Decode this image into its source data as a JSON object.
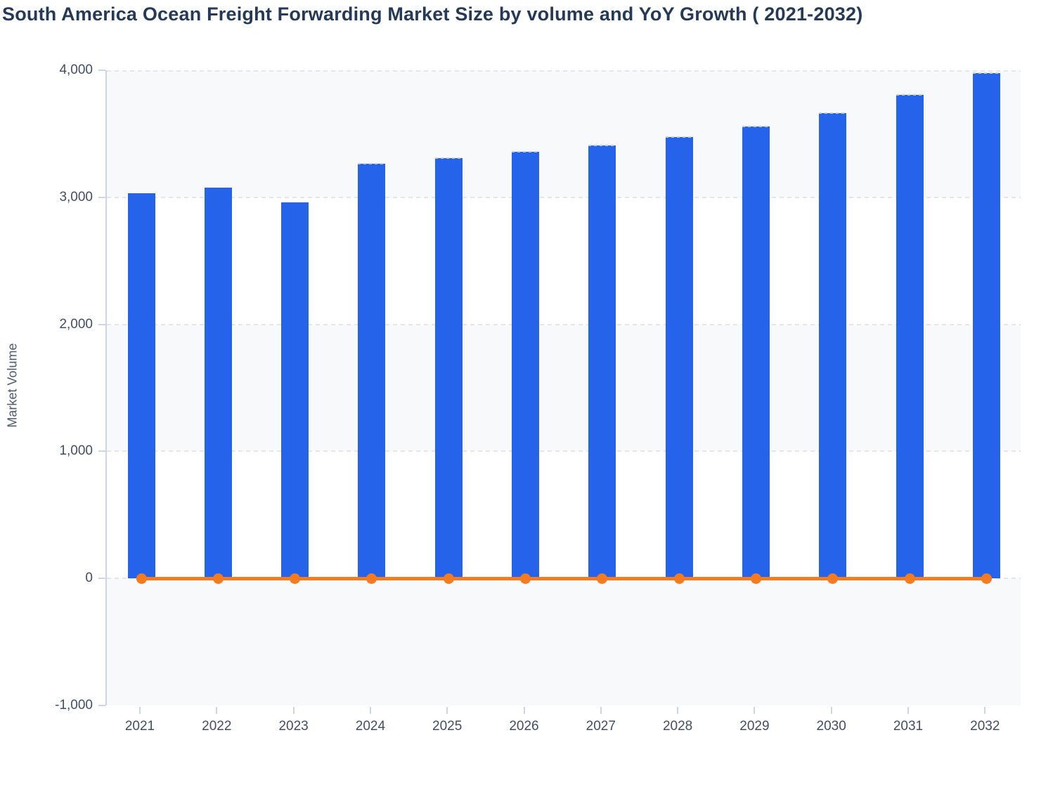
{
  "header": {
    "title": "South America Ocean Freight Forwarding Market Size by volume and YoY Growth ( 2021-2032)"
  },
  "chart_data": {
    "type": "bar",
    "subtype": "bar+line-combo",
    "title": "South America Ocean Freight Forwarding Market Size by volume and YoY Growth ( 2021-2032)",
    "xlabel": "",
    "ylabel": "Market Volume",
    "categories": [
      "2021",
      "2022",
      "2023",
      "2024",
      "2025",
      "2026",
      "2027",
      "2028",
      "2029",
      "2030",
      "2031",
      "2032"
    ],
    "series": [
      {
        "name": "Market Volume",
        "type": "bar",
        "color": "#2563eb",
        "values": [
          3030,
          3075,
          2960,
          3265,
          3310,
          3360,
          3410,
          3475,
          3555,
          3660,
          3805,
          3980
        ]
      },
      {
        "name": "YoY Growth",
        "type": "line",
        "color": "#f47b1f",
        "marker": "circle",
        "values": [
          0,
          0,
          0,
          0,
          0,
          0,
          0,
          0,
          0,
          0,
          0,
          0
        ]
      }
    ],
    "ylim": [
      -1000,
      4000
    ],
    "ytick_step": 1000,
    "yticks": [
      4000,
      3000,
      2000,
      1000,
      0,
      -1000
    ],
    "ytick_labels": [
      "4,000",
      "3,000",
      "2,000",
      "1,000",
      "0",
      "-1,000"
    ],
    "grid": "dashed horizontal gridlines",
    "legend": "none",
    "plot_band_fill": "#f8f9fb",
    "gridline_color": "#e4e6ea",
    "axis_line_color": "#ccd6eb",
    "label_color": "#414e66",
    "forecast_dashed_top_from_index": 3
  }
}
